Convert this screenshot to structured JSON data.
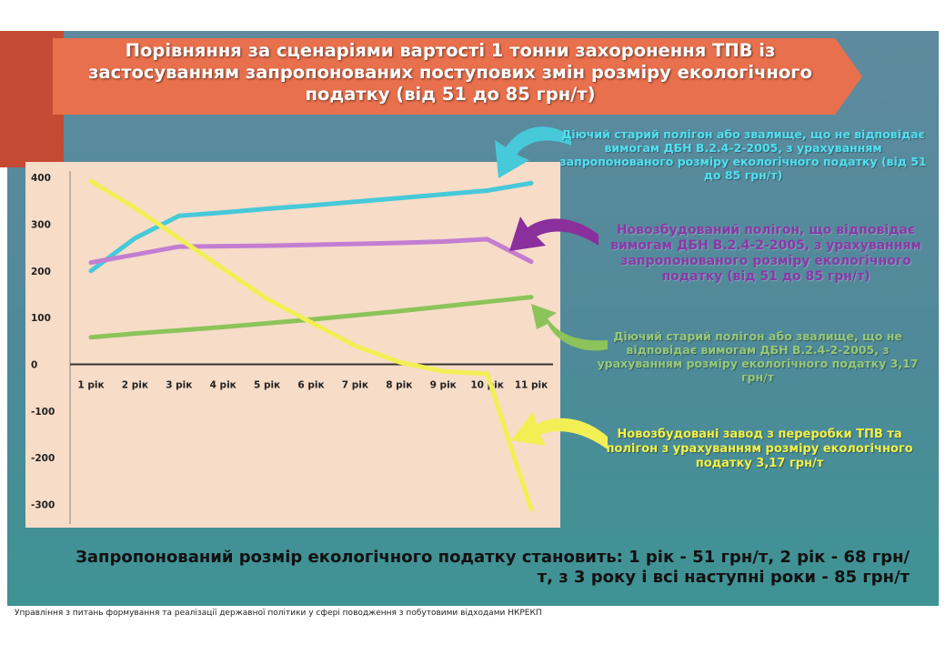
{
  "title": "Порівняння за сценаріями вартості 1 тонни захоронення ТПВ із застосуванням запропонованих поступових змін розміру екологічного податку (від 51 до 85 грн/т)",
  "annotations": {
    "cyan": "Діючий старий полігон або звалище, що не відповідає вимогам ДБН В.2.4-2-2005, з урахуванням запропонованого розміру екологічного податку (від 51 до 85 грн/т)",
    "purple": "Новозбудований полігон, що відповідає вимогам ДБН В.2.4-2-2005, з урахуванням запропонованого розміру екологічного податку (від 51 до 85 грн/т)",
    "green": "Діючий старий полігон або звалище, що не відповідає вимогам ДБН В.2.4-2-2005, з урахуванням розміру екологічного податку 3,17 грн/т",
    "yellow": "Новозбудовані завод з переробки ТПВ та полігон з урахуванням розміру екологічного податку 3,17 грн/т"
  },
  "footnote": "Запропонований розмір екологічного податку становить: 1 рік - 51 грн/т, 2 рік - 68 грн/т, з 3 року і всі наступні роки - 85 грн/т",
  "source": "Управління з питань формування та реалізації державної політики у сфері поводження з побутовими відходами НКРЕКП",
  "colors": {
    "cyan": "#47c9d9",
    "purple": "#c27ed1",
    "green": "#8cc35a",
    "yellow": "#f2ef55",
    "plot_bg": "#f7dcc8",
    "banner": "#e8704d"
  },
  "chart_data": {
    "type": "line",
    "categories": [
      "1 рік",
      "2 рік",
      "3 рік",
      "4 рік",
      "5 рік",
      "6 рік",
      "7 рік",
      "8 рік",
      "9 рік",
      "10 рік",
      "11 рік"
    ],
    "yticks": [
      "400",
      "300",
      "200",
      "100",
      "0",
      "-100",
      "-200",
      "-300"
    ],
    "ylim": [
      -330,
      410
    ],
    "grid": false,
    "legend": "none",
    "series": [
      {
        "color_key": "cyan",
        "values": [
          200,
          270,
          318,
          325,
          333,
          340,
          348,
          356,
          364,
          372,
          388
        ]
      },
      {
        "color_key": "purple",
        "values": [
          218,
          235,
          252,
          253,
          254,
          256,
          258,
          260,
          263,
          268,
          220
        ]
      },
      {
        "color_key": "green",
        "values": [
          58,
          66,
          73,
          80,
          88,
          96,
          105,
          114,
          124,
          134,
          144
        ]
      },
      {
        "color_key": "yellow",
        "values": [
          392,
          335,
          270,
          205,
          140,
          90,
          40,
          5,
          -15,
          -20,
          -310
        ]
      }
    ]
  }
}
